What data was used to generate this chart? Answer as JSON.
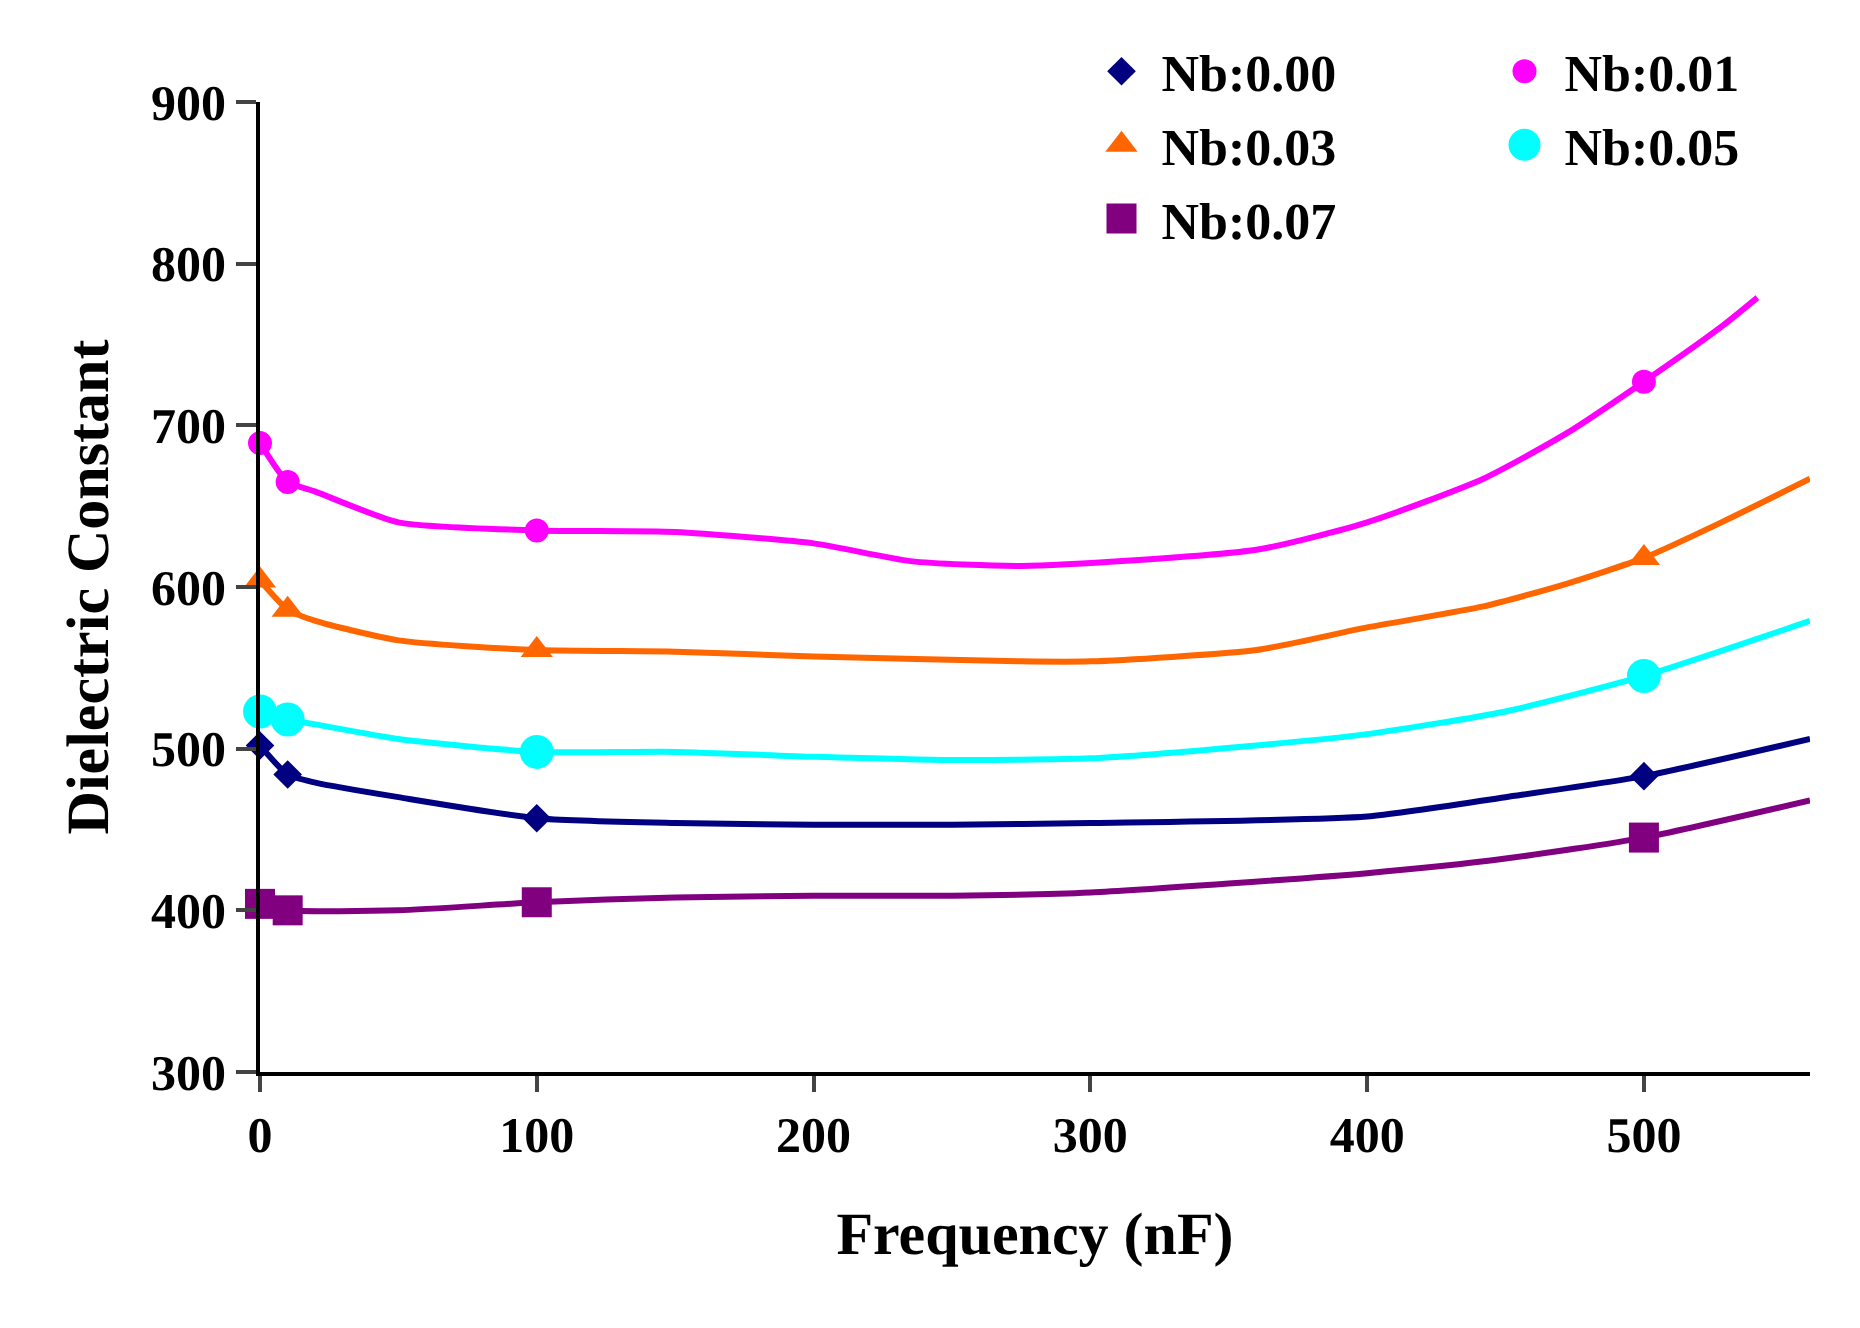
{
  "chart_data": {
    "type": "line",
    "xlabel": "Frequency (nF)",
    "ylabel": "Dielectric Constant",
    "xlim": [
      0,
      560
    ],
    "xticks": [
      0,
      100,
      200,
      300,
      400,
      500
    ],
    "ylim": [
      300,
      900
    ],
    "yticks": [
      300,
      400,
      500,
      600,
      700,
      800,
      900
    ],
    "legend": "top right",
    "series": [
      {
        "name": "Nb:0.00",
        "type": "scatter",
        "color": "#000080",
        "marker": "diamond",
        "x": [
          0,
          10,
          100,
          500
        ],
        "values": [
          502,
          484,
          457,
          483
        ]
      },
      {
        "name": "Nb:0.01",
        "type": "scatter",
        "color": "#ff00ff",
        "marker": "circle",
        "x": [
          0,
          10,
          100,
          500
        ],
        "values": [
          689,
          665,
          635,
          727
        ]
      },
      {
        "name": "Nb:0.03",
        "type": "scatter",
        "color": "#ff6600",
        "marker": "triangle",
        "x": [
          0,
          10,
          100,
          500
        ],
        "values": [
          604,
          586,
          561,
          618
        ]
      },
      {
        "name": "Nb:0.05",
        "type": "scatter",
        "color": "#00ffff",
        "marker": "circle",
        "x": [
          0,
          10,
          100,
          500
        ],
        "values": [
          523,
          518,
          498,
          545
        ]
      },
      {
        "name": "Nb:0.07",
        "type": "scatter",
        "color": "#800080",
        "marker": "square",
        "x": [
          0,
          10,
          100,
          500
        ],
        "values": [
          404,
          400,
          405,
          445
        ]
      },
      {
        "color": "#000080",
        "marker": "none",
        "x": [
          0,
          10,
          20,
          50,
          100,
          150,
          200,
          250,
          300,
          400,
          450,
          500,
          560
        ],
        "values": [
          502,
          484,
          479,
          470,
          457,
          454,
          453,
          453,
          454,
          458,
          470,
          483,
          506
        ]
      },
      {
        "color": "#ff00ff",
        "marker": "none",
        "x": [
          0,
          10,
          20,
          50,
          100,
          150,
          200,
          235,
          275,
          360,
          400,
          442,
          472,
          500,
          528,
          541
        ],
        "values": [
          689,
          665,
          659,
          640,
          635,
          634,
          627,
          616,
          613,
          623,
          640,
          667,
          695,
          727,
          761,
          779
        ]
      },
      {
        "color": "#ff6600",
        "marker": "none",
        "x": [
          0,
          10,
          20,
          50,
          100,
          150,
          200,
          275,
          300,
          360,
          400,
          442,
          472,
          500,
          528,
          560
        ],
        "values": [
          604,
          586,
          579,
          567,
          561,
          560,
          557,
          554,
          554,
          561,
          575,
          588,
          602,
          618,
          640,
          667
        ]
      },
      {
        "color": "#00ffff",
        "marker": "none",
        "x": [
          0,
          10,
          20,
          50,
          100,
          150,
          200,
          250,
          300,
          360,
          400,
          450,
          500,
          560
        ],
        "values": [
          523,
          518,
          515,
          506,
          498,
          498,
          495,
          493,
          494,
          502,
          509,
          523,
          545,
          579
        ]
      },
      {
        "color": "#800080",
        "marker": "none",
        "x": [
          0,
          10,
          50,
          100,
          150,
          200,
          250,
          300,
          400,
          450,
          500,
          560
        ],
        "values": [
          404,
          400,
          400,
          405,
          408,
          409,
          409,
          411,
          423,
          432,
          445,
          468
        ]
      }
    ]
  }
}
